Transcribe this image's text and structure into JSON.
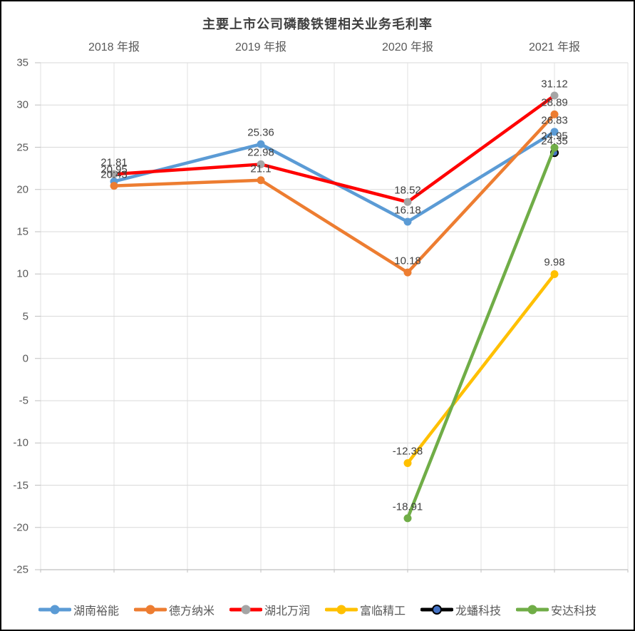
{
  "chart": {
    "border_color": "#000000",
    "background": "#ffffff"
  },
  "chart_data": {
    "type": "line",
    "title": "主要上市公司磷酸铁锂相关业务毛利率",
    "categories": [
      "2018 年报",
      "2019 年报",
      "2020 年报",
      "2021 年报"
    ],
    "series": [
      {
        "name": "湖南裕能",
        "line_color": "#5B9BD5",
        "marker_color": "#5B9BD5",
        "values": [
          20.95,
          25.36,
          16.18,
          26.83
        ],
        "labels": [
          "20.95",
          "25.36",
          "16.18",
          "26.83"
        ]
      },
      {
        "name": "德方纳米",
        "line_color": "#ED7D31",
        "marker_color": "#ED7D31",
        "values": [
          20.43,
          21.1,
          10.18,
          28.89
        ],
        "labels": [
          "20.43",
          "21.1",
          "10.18",
          "28.89"
        ]
      },
      {
        "name": "湖北万润",
        "line_color": "#FF0000",
        "marker_color": "#A5A5A5",
        "values": [
          21.81,
          22.98,
          18.52,
          31.12
        ],
        "labels": [
          "21.81",
          "22.98",
          "18.52",
          "31.12"
        ]
      },
      {
        "name": "富临精工",
        "line_color": "#FFC000",
        "marker_color": "#FFC000",
        "values": [
          null,
          null,
          -12.38,
          9.98
        ],
        "labels": [
          null,
          null,
          "-12.38",
          "9.98"
        ]
      },
      {
        "name": "龙蟠科技",
        "line_color": "#000000",
        "marker_color": "#4472C4",
        "marker_edge": "#000000",
        "values": [
          null,
          null,
          null,
          24.35
        ],
        "labels": [
          null,
          null,
          null,
          "24.35"
        ]
      },
      {
        "name": "安达科技",
        "line_color": "#70AD47",
        "marker_color": "#70AD47",
        "values": [
          null,
          null,
          -18.91,
          24.95
        ],
        "labels": [
          null,
          null,
          "-18.91",
          "24.95"
        ]
      }
    ],
    "ylim": [
      -25,
      35
    ],
    "y_step": 5,
    "y_tick_labels": [
      "35",
      "30",
      "25",
      "20",
      "15",
      "10",
      "5",
      "0",
      "-5",
      "-10",
      "-15",
      "-20",
      "-25"
    ],
    "grid": true,
    "x_axis_labels_position": "top",
    "legend_position": "bottom",
    "data_labels": "above",
    "style": {
      "h_gridline_color": "#D9D9D9",
      "v_gridline_color": "#E2E2E2",
      "axis_line_color": "#BFBFBF",
      "tick_color": "#BFBFBF",
      "axis_text_color": "#595959",
      "data_label_color": "#404040",
      "title_color": "#404040"
    }
  }
}
